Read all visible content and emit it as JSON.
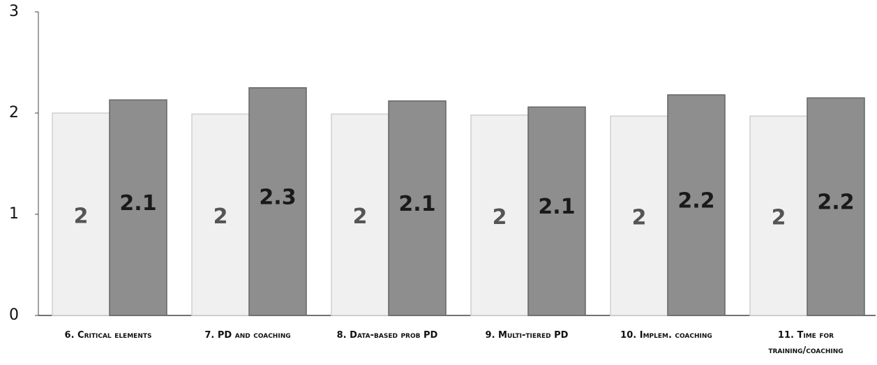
{
  "chart_data": {
    "type": "bar",
    "categories": [
      "6. Critical elements",
      "7. PD and coaching",
      "8. Data-based prob PD",
      "9.  Multi-tiered PD",
      "10. Implem. coaching",
      "11. Time for training/coaching"
    ],
    "series": [
      {
        "color": "#f0f0f0",
        "values": [
          2.0,
          1.99,
          1.99,
          1.98,
          1.97,
          1.97
        ],
        "value_labels": [
          "2",
          "2",
          "2",
          "2",
          "2",
          "2"
        ]
      },
      {
        "color": "#8e8e8e",
        "values": [
          2.13,
          2.25,
          2.12,
          2.06,
          2.18,
          2.15
        ],
        "value_labels": [
          "2.1",
          "2.3",
          "2.1",
          "2.1",
          "2.2",
          "2.2"
        ]
      }
    ],
    "ylim": [
      0,
      3
    ],
    "yticks": [
      0,
      1,
      2,
      3
    ],
    "grid": false
  }
}
